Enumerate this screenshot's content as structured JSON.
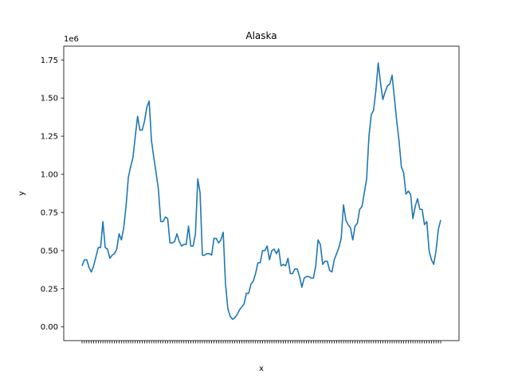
{
  "chart_data": {
    "type": "line",
    "title": "Alaska",
    "xlabel": "x",
    "ylabel": "y",
    "y_scale_label": "1e6",
    "ylim": [
      -0.09,
      1.84
    ],
    "yticks": [
      0.0,
      0.25,
      0.5,
      0.75,
      1.0,
      1.25,
      1.5,
      1.75
    ],
    "ytick_labels": [
      "0.00",
      "0.25",
      "0.50",
      "0.75",
      "1.00",
      "1.25",
      "1.50",
      "1.75"
    ],
    "grid": false,
    "legend": "none",
    "line_color": "#1f77b4",
    "series": [
      {
        "values": [
          0.4,
          0.44,
          0.44,
          0.39,
          0.36,
          0.4,
          0.46,
          0.52,
          0.52,
          0.69,
          0.52,
          0.51,
          0.45,
          0.47,
          0.48,
          0.51,
          0.61,
          0.57,
          0.65,
          0.79,
          0.98,
          1.05,
          1.11,
          1.25,
          1.38,
          1.29,
          1.29,
          1.35,
          1.44,
          1.48,
          1.22,
          1.11,
          1.01,
          0.9,
          0.69,
          0.69,
          0.72,
          0.71,
          0.55,
          0.55,
          0.56,
          0.61,
          0.56,
          0.53,
          0.54,
          0.54,
          0.66,
          0.53,
          0.53,
          0.61,
          0.97,
          0.88,
          0.47,
          0.47,
          0.48,
          0.48,
          0.47,
          0.58,
          0.58,
          0.55,
          0.57,
          0.62,
          0.28,
          0.12,
          0.07,
          0.05,
          0.06,
          0.08,
          0.11,
          0.13,
          0.15,
          0.22,
          0.22,
          0.28,
          0.3,
          0.35,
          0.42,
          0.42,
          0.5,
          0.5,
          0.53,
          0.44,
          0.5,
          0.51,
          0.48,
          0.51,
          0.4,
          0.41,
          0.4,
          0.45,
          0.35,
          0.35,
          0.38,
          0.38,
          0.33,
          0.26,
          0.32,
          0.33,
          0.33,
          0.32,
          0.32,
          0.4,
          0.57,
          0.54,
          0.41,
          0.43,
          0.43,
          0.37,
          0.36,
          0.44,
          0.48,
          0.52,
          0.58,
          0.8,
          0.7,
          0.67,
          0.65,
          0.57,
          0.66,
          0.68,
          0.77,
          0.79,
          0.88,
          0.97,
          1.25,
          1.39,
          1.42,
          1.55,
          1.73,
          1.6,
          1.49,
          1.54,
          1.58,
          1.59,
          1.65,
          1.5,
          1.35,
          1.22,
          1.05,
          1.01,
          0.87,
          0.89,
          0.87,
          0.71,
          0.79,
          0.84,
          0.77,
          0.77,
          0.67,
          0.69,
          0.5,
          0.44,
          0.41,
          0.5,
          0.64,
          0.7
        ]
      }
    ]
  }
}
